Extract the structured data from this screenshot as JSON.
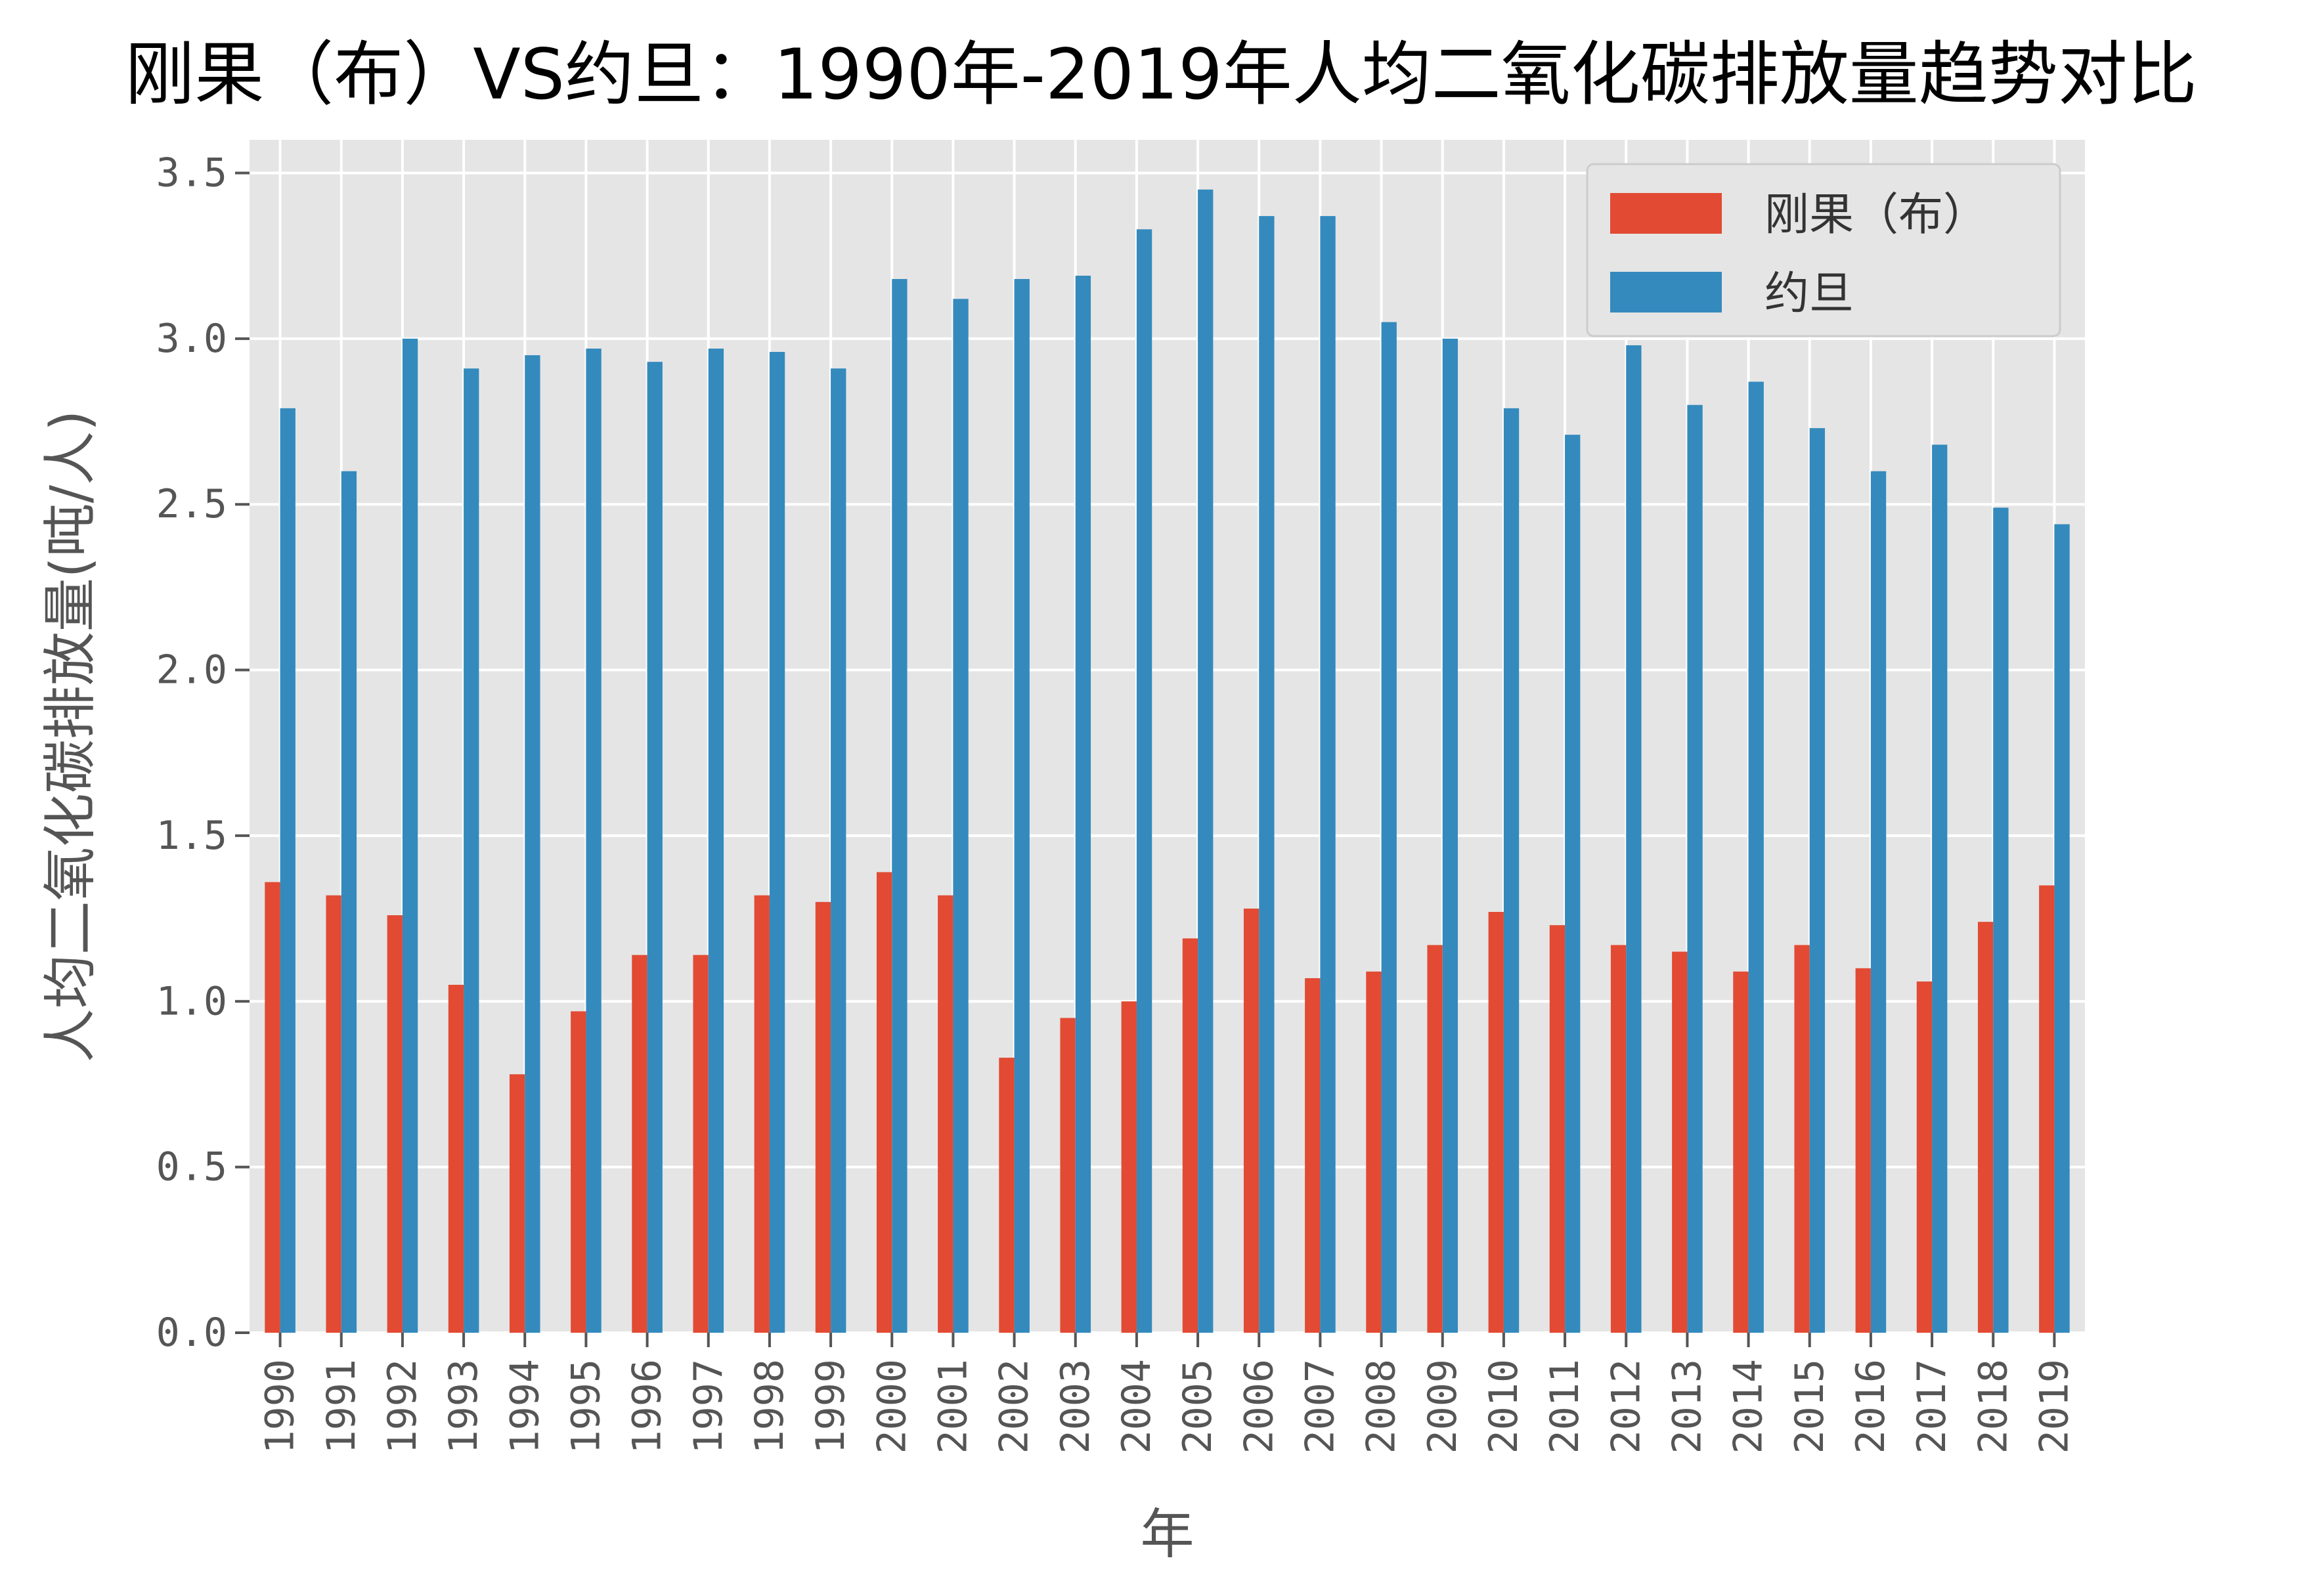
{
  "chart_data": {
    "type": "bar",
    "title": "刚果（布）VS约旦：1990年-2019年人均二氧化碳排放量趋势对比",
    "xlabel": "年",
    "ylabel": "人均二氧化碳排放量(吨/人)",
    "ylim": [
      0,
      3.6
    ],
    "yticks": [
      "0.0",
      "0.5",
      "1.0",
      "1.5",
      "2.0",
      "2.5",
      "3.0",
      "3.5"
    ],
    "ytick_values": [
      0,
      0.5,
      1.0,
      1.5,
      2.0,
      2.5,
      3.0,
      3.5
    ],
    "grid": true,
    "legend_position": "top-right",
    "categories": [
      "1990",
      "1991",
      "1992",
      "1993",
      "1994",
      "1995",
      "1996",
      "1997",
      "1998",
      "1999",
      "2000",
      "2001",
      "2002",
      "2003",
      "2004",
      "2005",
      "2006",
      "2007",
      "2008",
      "2009",
      "2010",
      "2011",
      "2012",
      "2013",
      "2014",
      "2015",
      "2016",
      "2017",
      "2018",
      "2019"
    ],
    "series": [
      {
        "name": "刚果（布）",
        "color": "#E24A33",
        "values": [
          1.36,
          1.32,
          1.26,
          1.05,
          0.78,
          0.97,
          1.14,
          1.14,
          1.32,
          1.3,
          1.39,
          1.32,
          0.83,
          0.95,
          1.0,
          1.19,
          1.28,
          1.07,
          1.09,
          1.17,
          1.27,
          1.23,
          1.17,
          1.15,
          1.09,
          1.17,
          1.1,
          1.06,
          1.24,
          1.35
        ]
      },
      {
        "name": "约旦",
        "color": "#348ABD",
        "values": [
          2.79,
          2.6,
          3.0,
          2.91,
          2.95,
          2.97,
          2.93,
          2.97,
          2.96,
          2.91,
          3.18,
          3.12,
          3.18,
          3.19,
          3.33,
          3.45,
          3.37,
          3.37,
          3.05,
          3.0,
          2.79,
          2.71,
          2.98,
          2.8,
          2.87,
          2.73,
          2.6,
          2.68,
          2.49,
          2.44
        ]
      }
    ]
  }
}
